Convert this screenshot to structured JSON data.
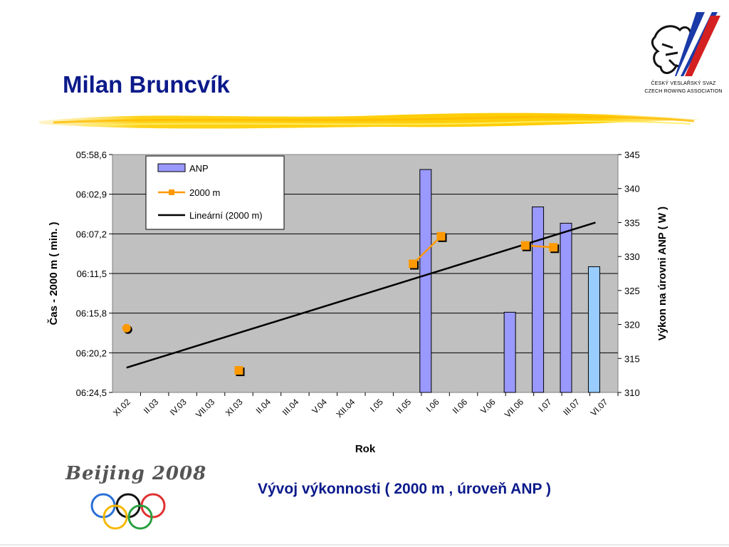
{
  "page": {
    "title": "Milan Bruncvík",
    "subtitle": "Vývoj výkonnosti ( 2000 m , úroveň ANP )",
    "logo_line1": "ČESKÝ VESLAŘSKÝ SVAZ",
    "logo_line2": "CZECH ROWING ASSOCIATION",
    "beijing_text": "Beijing 2008",
    "accent_color": "#0b1a8a"
  },
  "chart_data": {
    "type": "bar+line",
    "xlabel": "Rok",
    "ylabel_left": "Čas - 2000 m ( min. )",
    "ylabel_right": "Výkon na úrovni ANP ( W )",
    "categories": [
      "XI.02",
      "II.03",
      "IV.03",
      "VII.03",
      "XI.03",
      "II.04",
      "III.04",
      "V.04",
      "XII.04",
      "I.05",
      "II.05",
      "I.06",
      "II.06",
      "V.06",
      "VII.06",
      "I.07",
      "III.07",
      "VI.07"
    ],
    "left_axis": {
      "ticks": [
        "05:58,6",
        "06:02,9",
        "06:07,2",
        "06:11,5",
        "06:15,8",
        "06:20,2",
        "06:24,5"
      ],
      "range_seconds": [
        358.6,
        384.5
      ],
      "inverted": true
    },
    "right_axis": {
      "ticks": [
        "345",
        "340",
        "335",
        "330",
        "325",
        "320",
        "315",
        "310"
      ],
      "range": [
        310,
        345
      ]
    },
    "grid": true,
    "plot_background": "#c0c0c0",
    "legend": {
      "placement": "top-left",
      "entries": [
        "ANP",
        "2000 m",
        "Lineární (2000 m)"
      ]
    },
    "series": [
      {
        "name": "ANP",
        "kind": "bar",
        "axis": "right",
        "color": "#9999ff",
        "points": [
          {
            "x": 10.65,
            "value": 342.8
          },
          {
            "x": 13.65,
            "value": 321.8
          },
          {
            "x": 14.65,
            "value": 337.3
          },
          {
            "x": 15.65,
            "value": 334.9
          },
          {
            "x": 16.65,
            "value": 328.5,
            "color": "#99ccff"
          }
        ]
      },
      {
        "name": "2000 m",
        "kind": "line",
        "axis": "left",
        "color": "#ff9900",
        "points": [
          {
            "x": 0.0,
            "seconds": 377.5
          },
          {
            "x": 4.0,
            "seconds": 382.1
          },
          {
            "x": 10.2,
            "seconds": 370.5
          },
          {
            "x": 11.2,
            "seconds": 367.5
          },
          {
            "x": 14.2,
            "seconds": 368.5
          },
          {
            "x": 15.2,
            "seconds": 368.7
          }
        ],
        "connected_segments": [
          [
            2,
            3
          ],
          [
            4,
            5
          ]
        ]
      },
      {
        "name": "Lineární (2000 m)",
        "kind": "trendline",
        "axis": "left",
        "color": "#000000",
        "from": {
          "x": 0.0,
          "seconds": 381.8
        },
        "to": {
          "x": 16.7,
          "seconds": 366.0
        }
      }
    ]
  }
}
